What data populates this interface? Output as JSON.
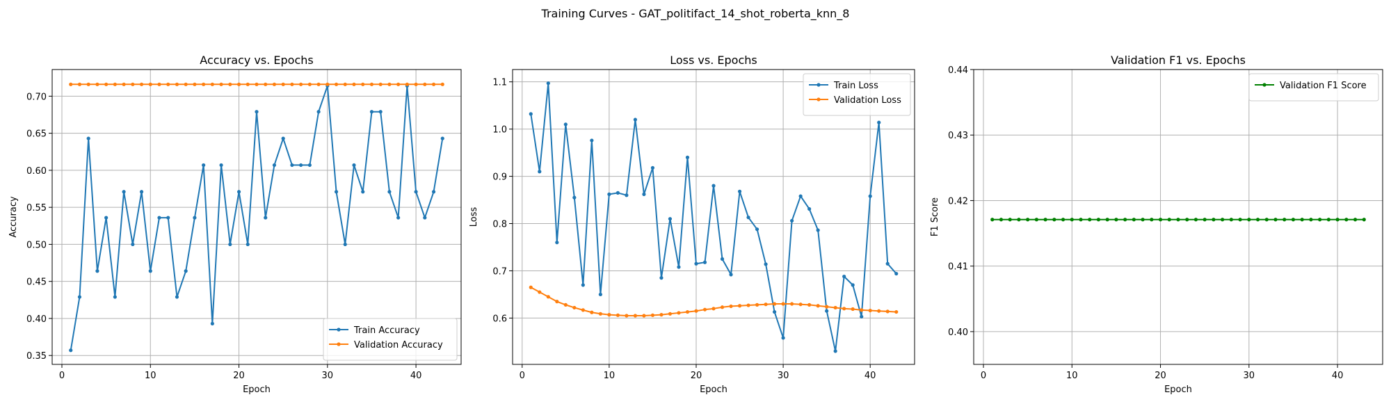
{
  "figure": {
    "title": "Training Curves - GAT_politifact_14_shot_roberta_knn_8"
  },
  "colors": {
    "train": "#1f77b4",
    "validation": "#ff7f0e",
    "f1": "#008000",
    "grid": "#b0b0b0"
  },
  "chart_data": [
    {
      "type": "line",
      "title": "Accuracy vs. Epochs",
      "xlabel": "Epoch",
      "ylabel": "Accuracy",
      "xlim": [
        -1.1,
        45.1
      ],
      "ylim": [
        0.338,
        0.736
      ],
      "xticks": [
        0,
        10,
        20,
        30,
        40
      ],
      "yticks": [
        0.35,
        0.4,
        0.45,
        0.5,
        0.55,
        0.6,
        0.65,
        0.7
      ],
      "ytick_labels": [
        "0.35",
        "0.40",
        "0.45",
        "0.50",
        "0.55",
        "0.60",
        "0.65",
        "0.70"
      ],
      "grid": true,
      "legend": "lower-right",
      "x": [
        1,
        2,
        3,
        4,
        5,
        6,
        7,
        8,
        9,
        10,
        11,
        12,
        13,
        14,
        15,
        16,
        17,
        18,
        19,
        20,
        21,
        22,
        23,
        24,
        25,
        26,
        27,
        28,
        29,
        30,
        31,
        32,
        33,
        34,
        35,
        36,
        37,
        38,
        39,
        40,
        41,
        42,
        43
      ],
      "series": [
        {
          "name": "Train Accuracy",
          "color_key": "train",
          "values": [
            0.357,
            0.429,
            0.643,
            0.464,
            0.536,
            0.429,
            0.571,
            0.5,
            0.571,
            0.464,
            0.536,
            0.536,
            0.429,
            0.464,
            0.536,
            0.607,
            0.393,
            0.607,
            0.5,
            0.571,
            0.5,
            0.679,
            0.536,
            0.607,
            0.643,
            0.607,
            0.607,
            0.607,
            0.679,
            0.714,
            0.571,
            0.5,
            0.607,
            0.571,
            0.679,
            0.679,
            0.571,
            0.536,
            0.714,
            0.571,
            0.536,
            0.571,
            0.643
          ]
        },
        {
          "name": "Validation Accuracy",
          "color_key": "validation",
          "values": [
            0.716,
            0.716,
            0.716,
            0.716,
            0.716,
            0.716,
            0.716,
            0.716,
            0.716,
            0.716,
            0.716,
            0.716,
            0.716,
            0.716,
            0.716,
            0.716,
            0.716,
            0.716,
            0.716,
            0.716,
            0.716,
            0.716,
            0.716,
            0.716,
            0.716,
            0.716,
            0.716,
            0.716,
            0.716,
            0.716,
            0.716,
            0.716,
            0.716,
            0.716,
            0.716,
            0.716,
            0.716,
            0.716,
            0.716,
            0.716,
            0.716,
            0.716,
            0.716
          ]
        }
      ]
    },
    {
      "type": "line",
      "title": "Loss vs. Epochs",
      "xlabel": "Epoch",
      "ylabel": "Loss",
      "xlim": [
        -1.1,
        45.1
      ],
      "ylim": [
        0.502,
        1.126
      ],
      "xticks": [
        0,
        10,
        20,
        30,
        40
      ],
      "yticks": [
        0.6,
        0.7,
        0.8,
        0.9,
        1.0,
        1.1
      ],
      "ytick_labels": [
        "0.6",
        "0.7",
        "0.8",
        "0.9",
        "1.0",
        "1.1"
      ],
      "grid": true,
      "legend": "upper-right",
      "x": [
        1,
        2,
        3,
        4,
        5,
        6,
        7,
        8,
        9,
        10,
        11,
        12,
        13,
        14,
        15,
        16,
        17,
        18,
        19,
        20,
        21,
        22,
        23,
        24,
        25,
        26,
        27,
        28,
        29,
        30,
        31,
        32,
        33,
        34,
        35,
        36,
        37,
        38,
        39,
        40,
        41,
        42,
        43
      ],
      "series": [
        {
          "name": "Train Loss",
          "color_key": "train",
          "values": [
            1.032,
            0.91,
            1.097,
            0.76,
            1.01,
            0.855,
            0.67,
            0.976,
            0.65,
            0.862,
            0.865,
            0.86,
            1.02,
            0.862,
            0.918,
            0.685,
            0.81,
            0.708,
            0.94,
            0.715,
            0.718,
            0.88,
            0.725,
            0.692,
            0.868,
            0.813,
            0.788,
            0.714,
            0.613,
            0.558,
            0.806,
            0.858,
            0.831,
            0.786,
            0.615,
            0.53,
            0.688,
            0.67,
            0.603,
            0.858,
            1.014,
            0.715,
            0.694
          ]
        },
        {
          "name": "Validation Loss",
          "color_key": "validation",
          "values": [
            0.665,
            0.655,
            0.645,
            0.635,
            0.628,
            0.622,
            0.617,
            0.612,
            0.609,
            0.607,
            0.606,
            0.605,
            0.605,
            0.605,
            0.606,
            0.607,
            0.609,
            0.611,
            0.613,
            0.615,
            0.618,
            0.62,
            0.623,
            0.625,
            0.626,
            0.627,
            0.628,
            0.629,
            0.63,
            0.63,
            0.63,
            0.629,
            0.628,
            0.626,
            0.624,
            0.622,
            0.62,
            0.619,
            0.617,
            0.616,
            0.615,
            0.614,
            0.613
          ]
        }
      ]
    },
    {
      "type": "line",
      "title": "Validation F1 vs. Epochs",
      "xlabel": "Epoch",
      "ylabel": "F1 Score",
      "xlim": [
        -1.1,
        45.1
      ],
      "ylim": [
        0.395,
        0.44
      ],
      "xticks": [
        0,
        10,
        20,
        30,
        40
      ],
      "yticks": [
        0.4,
        0.41,
        0.42,
        0.43,
        0.44
      ],
      "ytick_labels": [
        "0.40",
        "0.41",
        "0.42",
        "0.43",
        "0.44"
      ],
      "grid": true,
      "legend": "upper-right",
      "x": [
        1,
        2,
        3,
        4,
        5,
        6,
        7,
        8,
        9,
        10,
        11,
        12,
        13,
        14,
        15,
        16,
        17,
        18,
        19,
        20,
        21,
        22,
        23,
        24,
        25,
        26,
        27,
        28,
        29,
        30,
        31,
        32,
        33,
        34,
        35,
        36,
        37,
        38,
        39,
        40,
        41,
        42,
        43
      ],
      "series": [
        {
          "name": "Validation F1 Score",
          "color_key": "f1",
          "values": [
            0.4171,
            0.4171,
            0.4171,
            0.4171,
            0.4171,
            0.4171,
            0.4171,
            0.4171,
            0.4171,
            0.4171,
            0.4171,
            0.4171,
            0.4171,
            0.4171,
            0.4171,
            0.4171,
            0.4171,
            0.4171,
            0.4171,
            0.4171,
            0.4171,
            0.4171,
            0.4171,
            0.4171,
            0.4171,
            0.4171,
            0.4171,
            0.4171,
            0.4171,
            0.4171,
            0.4171,
            0.4171,
            0.4171,
            0.4171,
            0.4171,
            0.4171,
            0.4171,
            0.4171,
            0.4171,
            0.4171,
            0.4171,
            0.4171,
            0.4171
          ]
        }
      ]
    }
  ]
}
